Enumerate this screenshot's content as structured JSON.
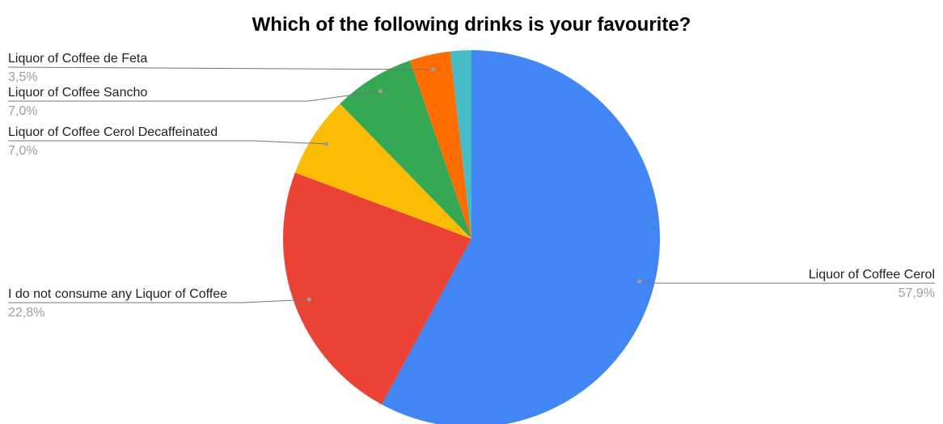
{
  "chart_data": {
    "type": "pie",
    "title": "Which of the following drinks is your favourite?",
    "slices": [
      {
        "label": "Liquor of Coffee Cerol",
        "value": 57.9,
        "value_text": "57,9%",
        "color": "#4285f4"
      },
      {
        "label": "I do not consume any Liquor of Coffee",
        "value": 22.8,
        "value_text": "22,8%",
        "color": "#ea4335"
      },
      {
        "label": "Liquor of Coffee Cerol Decaffeinated",
        "value": 7.0,
        "value_text": "7,0%",
        "color": "#fbbc04"
      },
      {
        "label": "Liquor of Coffee Sancho",
        "value": 7.0,
        "value_text": "7,0%",
        "color": "#34a853"
      },
      {
        "label": "Liquor of Coffee de Feta",
        "value": 3.5,
        "value_text": "3,5%",
        "color": "#ff6d01"
      },
      {
        "value": 1.8,
        "color": "#46bdc6"
      }
    ],
    "legend": "none"
  }
}
